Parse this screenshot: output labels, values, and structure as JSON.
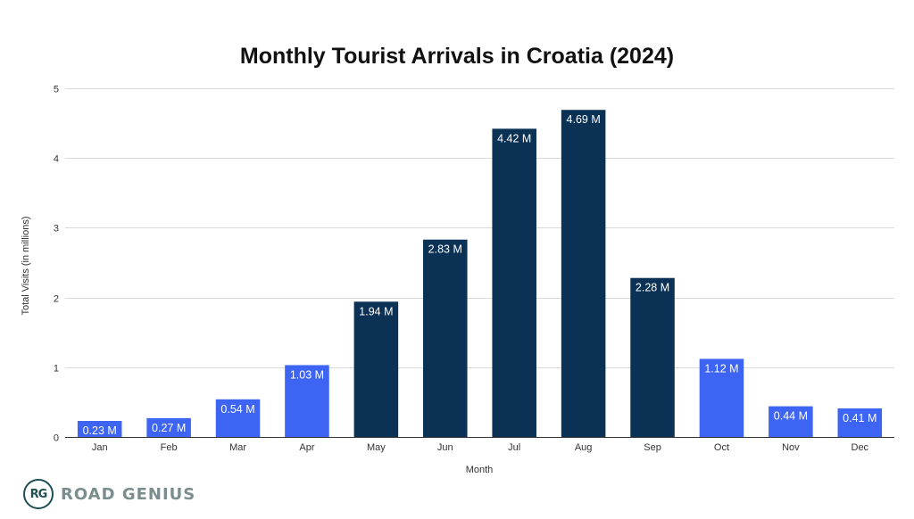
{
  "colors": {
    "light_bar": "#3d64f2",
    "dark_bar": "#0b3255",
    "grid": "#d9d9d9",
    "text": "#333333"
  },
  "chart_data": {
    "type": "bar",
    "title": "Monthly Tourist Arrivals in Croatia (2024)",
    "xlabel": "Month",
    "ylabel": "Total Visits (in millions)",
    "ylim": [
      0,
      5
    ],
    "yticks": [
      "0",
      "1",
      "2",
      "3",
      "4",
      "5"
    ],
    "grid": true,
    "categories": [
      "Jan",
      "Feb",
      "Mar",
      "Apr",
      "May",
      "Jun",
      "Jul",
      "Aug",
      "Sep",
      "Oct",
      "Nov",
      "Dec"
    ],
    "values": [
      0.23,
      0.27,
      0.54,
      1.03,
      1.94,
      2.83,
      4.42,
      4.69,
      2.28,
      1.12,
      0.44,
      0.41
    ],
    "data_labels": [
      "0.23 M",
      "0.27 M",
      "0.54 M",
      "1.03 M",
      "1.94 M",
      "2.83 M",
      "4.42 M",
      "4.69 M",
      "2.28 M",
      "1.12 M",
      "0.44 M",
      "0.41 M"
    ],
    "bar_colors": [
      "#3d64f2",
      "#3d64f2",
      "#3d64f2",
      "#3d64f2",
      "#0b3255",
      "#0b3255",
      "#0b3255",
      "#0b3255",
      "#0b3255",
      "#3d64f2",
      "#3d64f2",
      "#3d64f2"
    ]
  },
  "branding": {
    "badge": "RG",
    "name": "ROAD GENIUS"
  }
}
